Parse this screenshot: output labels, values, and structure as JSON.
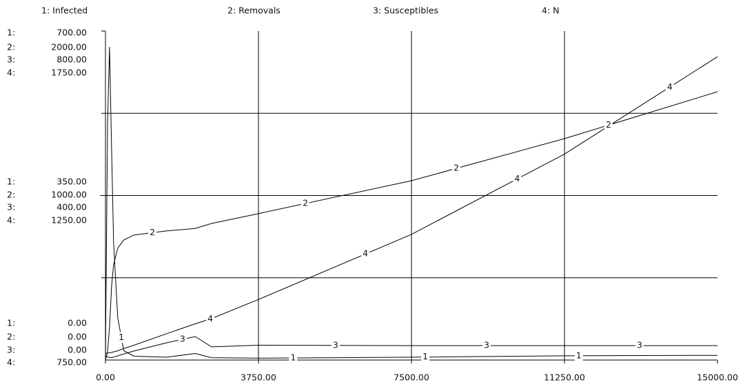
{
  "chart_data": {
    "type": "line",
    "xlim": [
      0,
      15000
    ],
    "xticks": [
      {
        "value": 0,
        "label": "0.00"
      },
      {
        "value": 3750,
        "label": "3750.00"
      },
      {
        "value": 7500,
        "label": "7500.00"
      },
      {
        "value": 11250,
        "label": "11250.00"
      },
      {
        "value": 15000,
        "label": "15000.00"
      }
    ],
    "grid": true,
    "color": "#000000",
    "x": [
      0,
      50,
      100,
      150,
      200,
      300,
      450,
      700,
      1500,
      2200,
      2600,
      3750,
      7500,
      11250,
      15000
    ],
    "series": [
      {
        "name": "1: Infected",
        "axis_prefix": "1:",
        "line_label": "1",
        "color": "#000000",
        "ylim": [
          0,
          700
        ],
        "yticks": [
          {
            "value": 0,
            "label": "0.00"
          },
          {
            "value": 350,
            "label": "350.00"
          },
          {
            "value": 700,
            "label": "700.00"
          }
        ],
        "values": [
          5,
          500,
          666,
          450,
          250,
          90,
          20,
          8,
          6,
          14,
          5,
          4,
          6,
          9,
          10
        ]
      },
      {
        "name": "2: Removals",
        "axis_prefix": "2:",
        "line_label": "2",
        "color": "#000000",
        "ylim": [
          0,
          2000
        ],
        "yticks": [
          {
            "value": 0,
            "label": "0.00"
          },
          {
            "value": 1000,
            "label": "1000.00"
          },
          {
            "value": 2000,
            "label": "2000.00"
          }
        ],
        "values": [
          0,
          50,
          200,
          450,
          580,
          680,
          730,
          760,
          785,
          800,
          830,
          890,
          1090,
          1346,
          1631
        ]
      },
      {
        "name": "3: Susceptibles",
        "axis_prefix": "3:",
        "line_label": "3",
        "color": "#000000",
        "ylim": [
          0,
          800
        ],
        "yticks": [
          {
            "value": 0,
            "label": "0.00"
          },
          {
            "value": 400,
            "label": "400.00"
          },
          {
            "value": 800,
            "label": "800.00"
          }
        ],
        "values": [
          10,
          8,
          6,
          6,
          7,
          10,
          15,
          22,
          42,
          57,
          32,
          36,
          35,
          35,
          35
        ]
      },
      {
        "name": "4: N",
        "axis_prefix": "4:",
        "line_label": "4",
        "color": "#000000",
        "ylim": [
          750,
          1750
        ],
        "yticks": [
          {
            "value": 750,
            "label": "750.00"
          },
          {
            "value": 1250,
            "label": "1250.00"
          },
          {
            "value": 1750,
            "label": "1750.00"
          }
        ],
        "values": [
          770,
          771,
          772,
          773,
          775,
          778,
          785,
          795,
          830,
          860,
          876,
          934,
          1132,
          1376,
          1672
        ]
      }
    ]
  }
}
